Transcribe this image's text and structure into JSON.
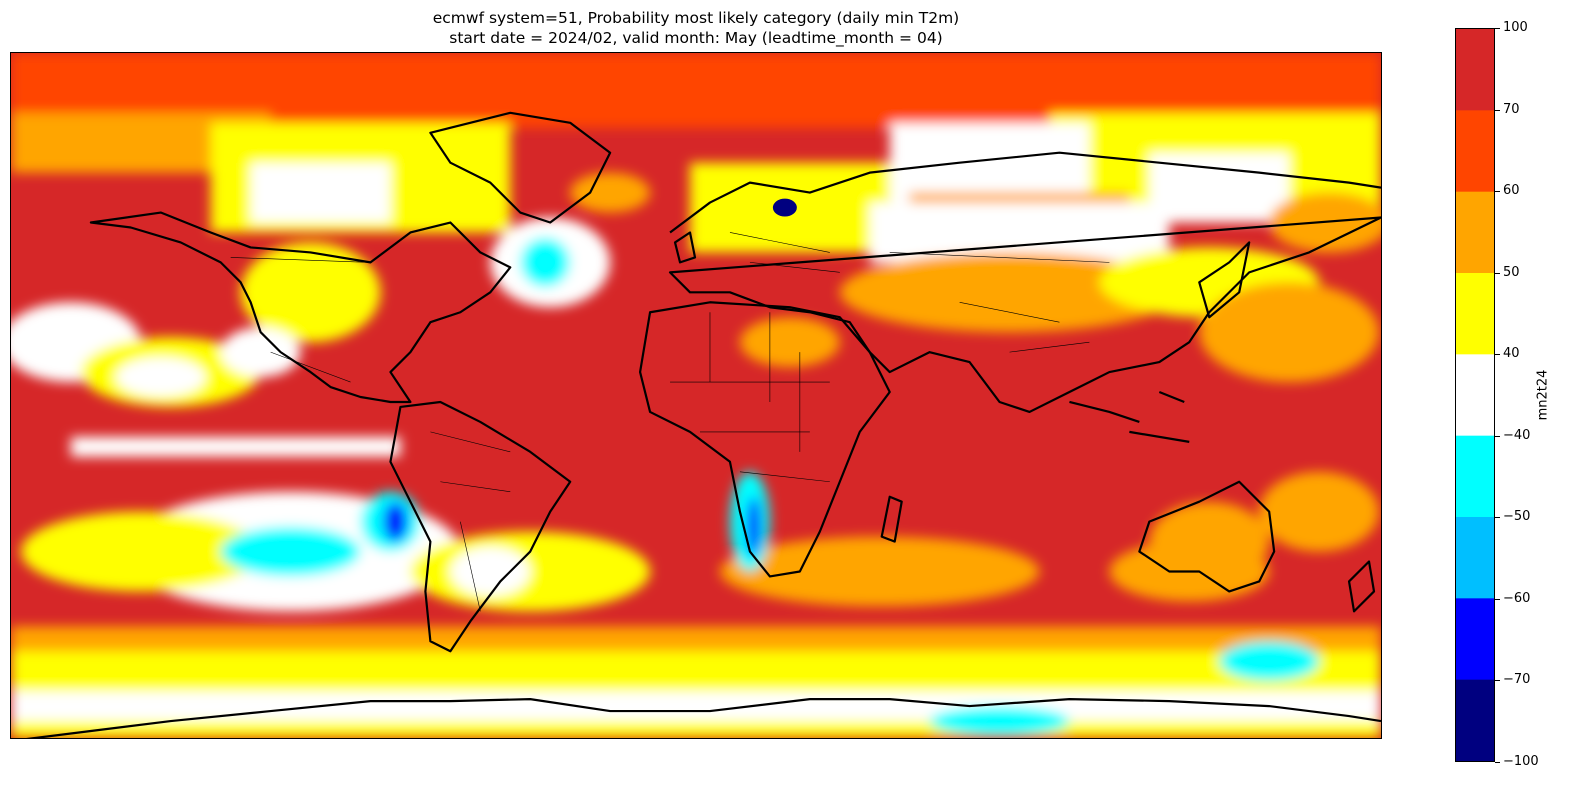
{
  "title": {
    "line1": "ecmwf system=51, Probability most likely category (daily min T2m)",
    "line2": "start date = 2024/02, valid month: May (leadtime_month = 04)"
  },
  "colorbar": {
    "label": "mn2t24",
    "ticks": [
      "100",
      "70",
      "60",
      "50",
      "40",
      "−40",
      "−50",
      "−60",
      "−70",
      "−100"
    ],
    "bins": [
      {
        "from": 70,
        "to": 100,
        "color": "#d62728"
      },
      {
        "from": 60,
        "to": 70,
        "color": "#ff4500"
      },
      {
        "from": 50,
        "to": 60,
        "color": "#ffa500"
      },
      {
        "from": 40,
        "to": 50,
        "color": "#ffff00"
      },
      {
        "from": -40,
        "to": 40,
        "color": "#ffffff"
      },
      {
        "from": -50,
        "to": -40,
        "color": "#00ffff"
      },
      {
        "from": -60,
        "to": -50,
        "color": "#00bfff"
      },
      {
        "from": -70,
        "to": -60,
        "color": "#0000ff"
      },
      {
        "from": -100,
        "to": -70,
        "color": "#000080"
      }
    ]
  },
  "map": {
    "projection": "PlateCarree",
    "extent": [
      -180,
      180,
      -90,
      90
    ],
    "coastlines": true,
    "borders": true
  }
}
